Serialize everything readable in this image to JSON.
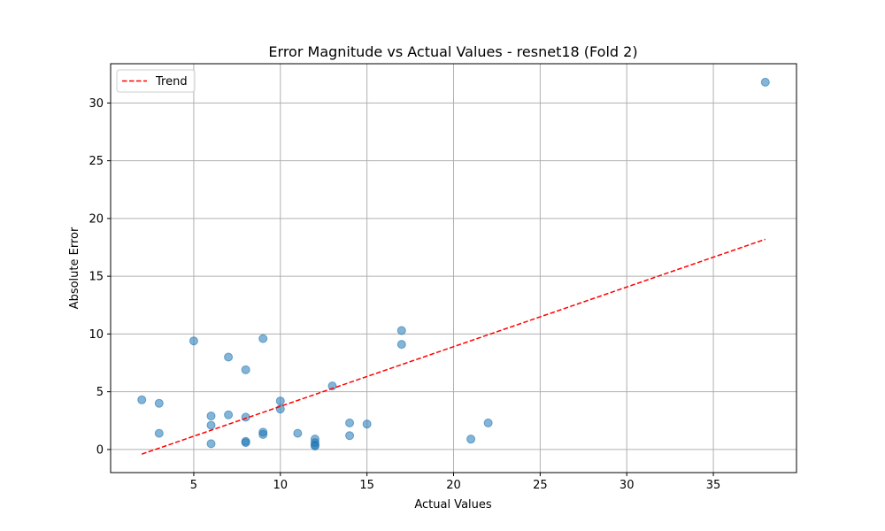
{
  "chart_data": {
    "type": "scatter",
    "title": "Error Magnitude vs Actual Values - resnet18 (Fold 2)",
    "xlabel": "Actual Values",
    "ylabel": "Absolute Error",
    "xlim": [
      0.2,
      39.8
    ],
    "ylim": [
      -2.0,
      33.4
    ],
    "xticks": [
      5,
      10,
      15,
      20,
      25,
      30,
      35
    ],
    "yticks": [
      0,
      5,
      10,
      15,
      20,
      25,
      30
    ],
    "grid": true,
    "legend": {
      "placement": "top-left",
      "entries": [
        "Trend"
      ]
    },
    "series": [
      {
        "kind": "scatter",
        "color": "#1f77b4",
        "points": [
          {
            "x": 2,
            "y": 4.3
          },
          {
            "x": 3,
            "y": 4.0
          },
          {
            "x": 3,
            "y": 1.4
          },
          {
            "x": 5,
            "y": 9.4
          },
          {
            "x": 6,
            "y": 2.9
          },
          {
            "x": 6,
            "y": 2.1
          },
          {
            "x": 6,
            "y": 0.5
          },
          {
            "x": 7,
            "y": 8.0
          },
          {
            "x": 7,
            "y": 3.0
          },
          {
            "x": 8,
            "y": 6.9
          },
          {
            "x": 8,
            "y": 2.8
          },
          {
            "x": 8,
            "y": 0.7
          },
          {
            "x": 8,
            "y": 0.6
          },
          {
            "x": 9,
            "y": 9.6
          },
          {
            "x": 9,
            "y": 1.5
          },
          {
            "x": 9,
            "y": 1.3
          },
          {
            "x": 10,
            "y": 4.2
          },
          {
            "x": 10,
            "y": 3.5
          },
          {
            "x": 11,
            "y": 1.4
          },
          {
            "x": 12,
            "y": 0.9
          },
          {
            "x": 12,
            "y": 0.6
          },
          {
            "x": 12,
            "y": 0.4
          },
          {
            "x": 12,
            "y": 0.3
          },
          {
            "x": 13,
            "y": 5.5
          },
          {
            "x": 14,
            "y": 2.3
          },
          {
            "x": 14,
            "y": 1.2
          },
          {
            "x": 15,
            "y": 2.2
          },
          {
            "x": 17,
            "y": 10.3
          },
          {
            "x": 17,
            "y": 9.1
          },
          {
            "x": 21,
            "y": 0.9
          },
          {
            "x": 22,
            "y": 2.3
          },
          {
            "x": 38,
            "y": 31.8
          }
        ]
      },
      {
        "kind": "line",
        "name": "Trend",
        "color": "#ff0000",
        "dashed": true,
        "x": [
          2,
          38
        ],
        "y": [
          -0.4,
          18.2
        ]
      }
    ]
  }
}
